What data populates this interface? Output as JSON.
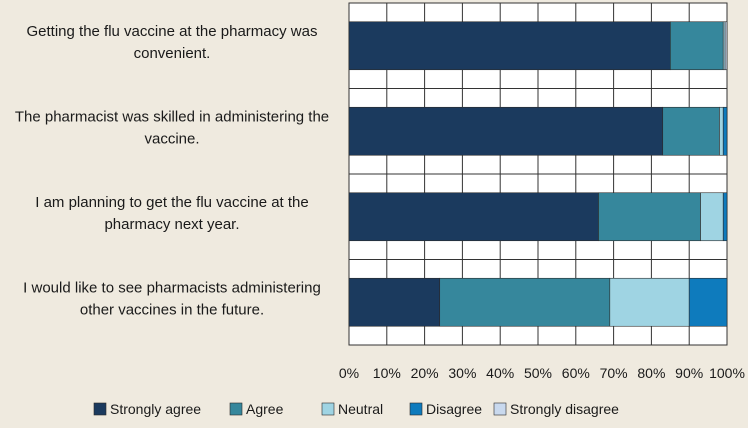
{
  "chart_data": {
    "type": "bar",
    "orientation": "horizontal",
    "stacked": true,
    "title": "",
    "xlabel": "",
    "ylabel": "",
    "xlim": [
      0,
      100
    ],
    "x_ticks": [
      "0%",
      "10%",
      "20%",
      "30%",
      "40%",
      "50%",
      "60%",
      "70%",
      "80%",
      "90%",
      "100%"
    ],
    "grid": true,
    "legend_position": "bottom",
    "categories": [
      "Getting the flu vaccine at the pharmacy was convenient.",
      "The pharmacist was skilled in administering the vaccine.",
      "I am planning to get the flu vaccine at the pharmacy next year.",
      "I would like to see pharmacists administering other vaccines in the future."
    ],
    "category_lines": [
      [
        "Getting the flu vaccine at the pharmacy was",
        "convenient."
      ],
      [
        "The pharmacist was skilled in administering the",
        "vaccine."
      ],
      [
        "I am planning to get the flu vaccine at the",
        "pharmacy next year."
      ],
      [
        "I would like to see pharmacists administering",
        "other vaccines in the future."
      ]
    ],
    "series": [
      {
        "name": "Strongly agree",
        "color": "#1b3a5e",
        "values": [
          85,
          83,
          66,
          24
        ]
      },
      {
        "name": "Agree",
        "color": "#36879c",
        "values": [
          14,
          15,
          27,
          45
        ]
      },
      {
        "name": "Neutral",
        "color": "#9fd4e3",
        "values": [
          0.5,
          1,
          6,
          21
        ]
      },
      {
        "name": "Disagree",
        "color": "#0e7bbd",
        "values": [
          0,
          1,
          1,
          10
        ]
      },
      {
        "name": "Strongly disagree",
        "color": "#c9d9ee",
        "values": [
          0.5,
          0,
          0,
          0
        ]
      }
    ]
  }
}
